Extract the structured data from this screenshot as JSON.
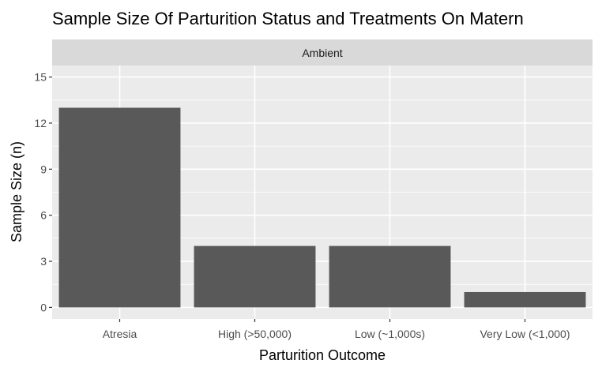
{
  "chart_data": {
    "type": "bar",
    "title": "Sample Size Of Parturition Status and Treatments On Matern",
    "facet_label": "Ambient",
    "xlabel": "Parturition Outcome",
    "ylabel": "Sample Size (n)",
    "categories": [
      "Atresia",
      "High (>50,000)",
      "Low (~1,000s)",
      "Very Low (<1,000)"
    ],
    "values": [
      13,
      4,
      4,
      1
    ],
    "ylim": [
      0,
      15
    ],
    "yticks": [
      0,
      3,
      6,
      9,
      12,
      15
    ],
    "grid": true,
    "colors": {
      "bar": "#595959",
      "panel": "#EBEBEB",
      "strip": "#D9D9D9",
      "grid": "#FFFFFF",
      "text": "#000000",
      "tick_text": "#4D4D4D",
      "tick": "#333333"
    }
  }
}
